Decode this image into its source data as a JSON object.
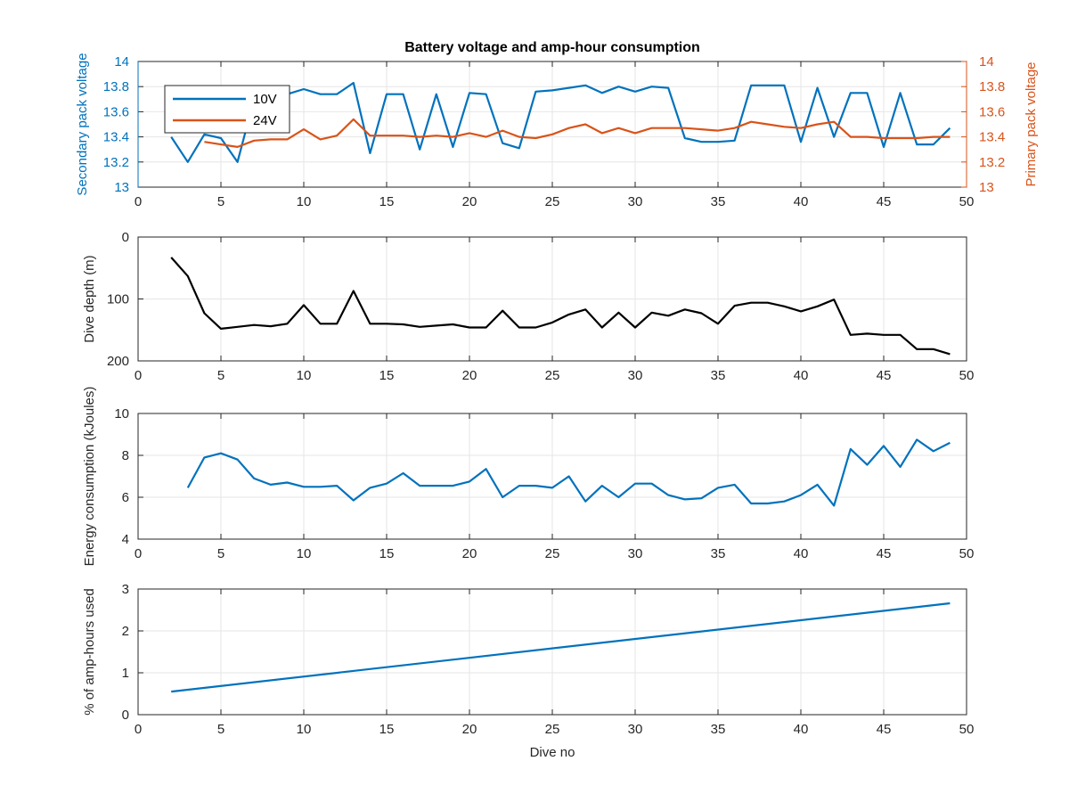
{
  "chart_data": [
    {
      "type": "line",
      "title": "Battery voltage and amp-hour consumption",
      "xlim": [
        0,
        50
      ],
      "xticks": [
        0,
        5,
        10,
        15,
        20,
        25,
        30,
        35,
        40,
        45,
        50
      ],
      "ylabel": "Secondary pack voltage",
      "ylim": [
        13,
        14
      ],
      "yticks": [
        13,
        13.2,
        13.4,
        13.6,
        13.8,
        14
      ],
      "y2label": "Primary pack voltage",
      "y2lim": [
        13,
        14
      ],
      "y2ticks": [
        13,
        13.2,
        13.4,
        13.6,
        13.8,
        14
      ],
      "grid": true,
      "legend_position": "top-left",
      "series": [
        {
          "name": "10V",
          "axis": "left",
          "color": "#0072BD",
          "x": [
            2,
            3,
            4,
            5,
            6,
            7,
            8,
            9,
            10,
            11,
            12,
            13,
            14,
            15,
            16,
            17,
            18,
            19,
            20,
            21,
            22,
            23,
            24,
            25,
            26,
            27,
            28,
            29,
            30,
            31,
            32,
            33,
            34,
            35,
            36,
            37,
            38,
            39,
            40,
            41,
            42,
            43,
            44,
            45,
            46,
            47,
            48,
            49
          ],
          "y": [
            13.4,
            13.2,
            13.42,
            13.39,
            13.2,
            13.7,
            13.72,
            13.74,
            13.78,
            13.74,
            13.74,
            13.83,
            13.27,
            13.74,
            13.74,
            13.3,
            13.74,
            13.32,
            13.75,
            13.74,
            13.35,
            13.31,
            13.76,
            13.77,
            13.79,
            13.81,
            13.75,
            13.8,
            13.76,
            13.8,
            13.79,
            13.39,
            13.36,
            13.36,
            13.37,
            13.81,
            13.81,
            13.81,
            13.36,
            13.79,
            13.4,
            13.75,
            13.75,
            13.32,
            13.75,
            13.34,
            13.34,
            13.47
          ]
        },
        {
          "name": "24V",
          "axis": "right",
          "color": "#D95319",
          "x": [
            4,
            5,
            6,
            7,
            8,
            9,
            10,
            11,
            12,
            13,
            14,
            15,
            16,
            17,
            18,
            19,
            20,
            21,
            22,
            23,
            24,
            25,
            26,
            27,
            28,
            29,
            30,
            31,
            32,
            33,
            34,
            35,
            36,
            37,
            38,
            39,
            40,
            41,
            42,
            43,
            44,
            45,
            46,
            47,
            48,
            49
          ],
          "y": [
            13.36,
            13.34,
            13.32,
            13.37,
            13.38,
            13.38,
            13.46,
            13.38,
            13.41,
            13.54,
            13.41,
            13.41,
            13.41,
            13.4,
            13.41,
            13.4,
            13.43,
            13.4,
            13.45,
            13.4,
            13.39,
            13.42,
            13.47,
            13.5,
            13.43,
            13.47,
            13.43,
            13.47,
            13.47,
            13.47,
            13.46,
            13.45,
            13.47,
            13.52,
            13.5,
            13.48,
            13.47,
            13.5,
            13.52,
            13.4,
            13.4,
            13.39,
            13.39,
            13.39,
            13.4,
            13.4
          ]
        }
      ]
    },
    {
      "type": "line",
      "xlim": [
        0,
        50
      ],
      "xticks": [
        0,
        5,
        10,
        15,
        20,
        25,
        30,
        35,
        40,
        45,
        50
      ],
      "ylabel": "Dive depth (m)",
      "ylim": [
        0,
        200
      ],
      "y_reversed": true,
      "yticks": [
        0,
        100,
        200
      ],
      "grid": true,
      "series": [
        {
          "color": "#000000",
          "x": [
            2,
            3,
            4,
            5,
            6,
            7,
            8,
            9,
            10,
            11,
            12,
            13,
            14,
            15,
            16,
            17,
            18,
            19,
            20,
            21,
            22,
            23,
            24,
            25,
            26,
            27,
            28,
            29,
            30,
            31,
            32,
            33,
            34,
            35,
            36,
            37,
            38,
            39,
            40,
            41,
            42,
            43,
            44,
            45,
            46,
            47,
            48,
            49
          ],
          "y": [
            33,
            63,
            123,
            148,
            145,
            142,
            144,
            140,
            110,
            140,
            140,
            87,
            140,
            140,
            141,
            145,
            143,
            141,
            146,
            146,
            119,
            146,
            146,
            138,
            125,
            117,
            146,
            122,
            146,
            122,
            127,
            117,
            123,
            140,
            111,
            106,
            106,
            112,
            120,
            112,
            101,
            158,
            156,
            158,
            158,
            181,
            181,
            189
          ]
        }
      ]
    },
    {
      "type": "line",
      "xlim": [
        0,
        50
      ],
      "xticks": [
        0,
        5,
        10,
        15,
        20,
        25,
        30,
        35,
        40,
        45,
        50
      ],
      "ylabel": "Energy consumption (kJoules)",
      "ylim": [
        4,
        10
      ],
      "yticks": [
        4,
        6,
        8,
        10
      ],
      "grid": true,
      "series": [
        {
          "color": "#0072BD",
          "x": [
            3,
            4,
            5,
            6,
            7,
            8,
            9,
            10,
            11,
            12,
            13,
            14,
            15,
            16,
            17,
            18,
            19,
            20,
            21,
            22,
            23,
            24,
            25,
            26,
            27,
            28,
            29,
            30,
            31,
            32,
            33,
            34,
            35,
            36,
            37,
            38,
            39,
            40,
            41,
            42,
            43,
            44,
            45,
            46,
            47,
            48,
            49
          ],
          "y": [
            6.45,
            7.9,
            8.1,
            7.8,
            6.9,
            6.6,
            6.7,
            6.5,
            6.5,
            6.55,
            5.85,
            6.45,
            6.65,
            7.15,
            6.55,
            6.55,
            6.55,
            6.75,
            7.35,
            6.0,
            6.55,
            6.55,
            6.45,
            7.0,
            5.8,
            6.55,
            6.0,
            6.65,
            6.65,
            6.1,
            5.9,
            5.95,
            6.45,
            6.6,
            5.7,
            5.7,
            5.8,
            6.1,
            6.6,
            5.6,
            8.3,
            7.55,
            8.45,
            7.45,
            8.75,
            8.2,
            8.6
          ]
        }
      ]
    },
    {
      "type": "line",
      "xlim": [
        0,
        50
      ],
      "xticks": [
        0,
        5,
        10,
        15,
        20,
        25,
        30,
        35,
        40,
        45,
        50
      ],
      "xlabel": "Dive no",
      "ylabel": "% of amp-hours used",
      "ylim": [
        0,
        3
      ],
      "yticks": [
        0,
        1,
        2,
        3
      ],
      "grid": true,
      "series": [
        {
          "color": "#0072BD",
          "x": [
            2,
            49
          ],
          "y": [
            0.55,
            2.66
          ]
        }
      ]
    }
  ]
}
